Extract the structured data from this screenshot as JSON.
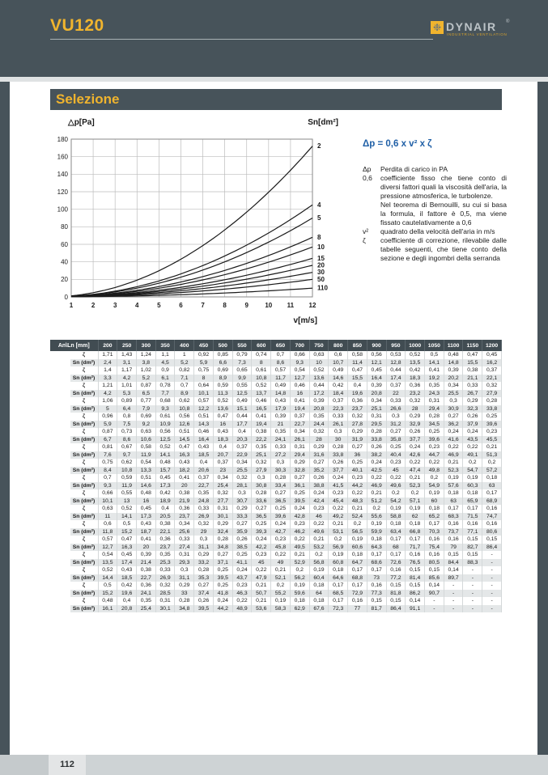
{
  "page": {
    "model": "VU120",
    "page_number": "112",
    "section_title": "Selezione"
  },
  "logo": {
    "brand": "DYNAIR",
    "registered": "®",
    "tagline": "INDUSTRIAL VENTILATION",
    "icon": "fan-icon",
    "accent_color": "#f0b42e"
  },
  "formula": {
    "text": "Δp = 0,6 x v² x ζ",
    "color": "#1f5fa6",
    "definitions": {
      "dp": {
        "term": "Δp",
        "text": "Perdita di carico in PA"
      },
      "c06": {
        "term": "0,6",
        "text": "coefficiente fisso che tiene conto di diversi fattori quali la viscosità dell'aria, la pressione atmosferica, le turbolenze.",
        "text2": "Nel teorema di Bernouilli, su cui si basa la formula, il fattore è 0,5, ma viene fissato cautelativamente a 0,6"
      },
      "v2": {
        "term": "v²",
        "text": "quadrato della velocità dell'aria in m/s"
      },
      "zeta": {
        "term": "ζ",
        "text": "coefficiente di correzione, rilevabile dalle tabelle seguenti, che tiene conto della sezione e degli ingombri della serranda"
      }
    }
  },
  "chart_data": {
    "type": "line",
    "title": "",
    "ylabel": "△p[Pa]",
    "xlabel": "v[m/s]",
    "curve_label_header": "Sn[dm²]",
    "xlim": [
      1,
      12
    ],
    "ylim": [
      0,
      180
    ],
    "x_ticks": [
      1,
      2,
      3,
      4,
      5,
      6,
      7,
      8,
      9,
      10,
      11,
      12
    ],
    "y_ticks": [
      0,
      20,
      40,
      60,
      80,
      100,
      120,
      140,
      160,
      180
    ],
    "grid": true,
    "legend_position": "right-edge-labels",
    "note": "curves follow Δp = 0,6 · v² · ζ; each curve labeled by section Sn[dm²]; dp_at_v12 is the Δp value where the curve meets v = 12 m/s",
    "series": [
      {
        "label": "2",
        "dp_at_v12": 172
      },
      {
        "label": "4",
        "dp_at_v12": 105
      },
      {
        "label": "5",
        "dp_at_v12": 90
      },
      {
        "label": "8",
        "dp_at_v12": 68
      },
      {
        "label": "10",
        "dp_at_v12": 57
      },
      {
        "label": "15",
        "dp_at_v12": 44
      },
      {
        "label": "20",
        "dp_at_v12": 36
      },
      {
        "label": "30",
        "dp_at_v12": 28
      },
      {
        "label": "50",
        "dp_at_v12": 20
      },
      {
        "label": "110",
        "dp_at_v12": 10
      }
    ]
  },
  "table": {
    "corner_label": "An\\Ln [mm]",
    "row_label_zeta": "ζ",
    "row_label_sn": "Sn (dm²)",
    "columns": [
      "200",
      "250",
      "300",
      "350",
      "400",
      "450",
      "500",
      "550",
      "600",
      "650",
      "700",
      "750",
      "800",
      "850",
      "900",
      "950",
      "1000",
      "1050",
      "1100",
      "1150",
      "1200"
    ],
    "rows": [
      {
        "an": "200",
        "zeta": [
          "1,71",
          "1,43",
          "1,24",
          "1,1",
          "1",
          "0,92",
          "0,85",
          "0,79",
          "0,74",
          "0,7",
          "0,66",
          "0,63",
          "0,6",
          "0,58",
          "0,56",
          "0,53",
          "0,52",
          "0,5",
          "0,48",
          "0,47",
          "0,45"
        ],
        "sn": [
          "2,4",
          "3,1",
          "3,8",
          "4,5",
          "5,2",
          "5,9",
          "6,6",
          "7,3",
          "8",
          "8,6",
          "9,3",
          "10",
          "10,7",
          "11,4",
          "12,1",
          "12,8",
          "13,5",
          "14,1",
          "14,8",
          "15,5",
          "16,2"
        ]
      },
      {
        "an": "250",
        "zeta": [
          "1,4",
          "1,17",
          "1,02",
          "0,9",
          "0,82",
          "0,75",
          "0,69",
          "0,65",
          "0,61",
          "0,57",
          "0,54",
          "0,52",
          "0,49",
          "0,47",
          "0,45",
          "0,44",
          "0,42",
          "0,41",
          "0,39",
          "0,38",
          "0,37"
        ],
        "sn": [
          "3,3",
          "4,2",
          "5,2",
          "6,1",
          "7,1",
          "8",
          "8,9",
          "9,9",
          "10,8",
          "11,7",
          "12,7",
          "13,6",
          "14,6",
          "15,5",
          "16,4",
          "17,4",
          "18,3",
          "19,2",
          "20,2",
          "21,1",
          "22,1"
        ]
      },
      {
        "an": "300",
        "zeta": [
          "1,21",
          "1,01",
          "0,87",
          "0,78",
          "0,7",
          "0,64",
          "0,59",
          "0,55",
          "0,52",
          "0,49",
          "0,46",
          "0,44",
          "0,42",
          "0,4",
          "0,39",
          "0,37",
          "0,36",
          "0,35",
          "0,34",
          "0,33",
          "0,32"
        ],
        "sn": [
          "4,2",
          "5,3",
          "6,5",
          "7,7",
          "8,9",
          "10,1",
          "11,3",
          "12,5",
          "13,7",
          "14,8",
          "16",
          "17,2",
          "18,4",
          "19,6",
          "20,8",
          "22",
          "23,2",
          "24,3",
          "25,5",
          "26,7",
          "27,9"
        ]
      },
      {
        "an": "350",
        "zeta": [
          "1,06",
          "0,89",
          "0,77",
          "0,68",
          "0,62",
          "0,57",
          "0,52",
          "0,49",
          "0,46",
          "0,43",
          "0,41",
          "0,39",
          "0,37",
          "0,36",
          "0,34",
          "0,33",
          "0,32",
          "0,31",
          "0,3",
          "0,29",
          "0,28"
        ],
        "sn": [
          "5",
          "6,4",
          "7,9",
          "9,3",
          "10,8",
          "12,2",
          "13,6",
          "15,1",
          "16,5",
          "17,9",
          "19,4",
          "20,8",
          "22,3",
          "23,7",
          "25,1",
          "26,6",
          "28",
          "29,4",
          "30,9",
          "32,3",
          "33,8"
        ]
      },
      {
        "an": "400",
        "zeta": [
          "0,96",
          "0,8",
          "0,69",
          "0,61",
          "0,56",
          "0,51",
          "0,47",
          "0,44",
          "0,41",
          "0,39",
          "0,37",
          "0,35",
          "0,33",
          "0,32",
          "0,31",
          "0,3",
          "0,29",
          "0,28",
          "0,27",
          "0,26",
          "0,25"
        ],
        "sn": [
          "5,9",
          "7,5",
          "9,2",
          "10,9",
          "12,6",
          "14,3",
          "16",
          "17,7",
          "19,4",
          "21",
          "22,7",
          "24,4",
          "26,1",
          "27,8",
          "29,5",
          "31,2",
          "32,9",
          "34,5",
          "36,2",
          "37,9",
          "39,6"
        ]
      },
      {
        "an": "450",
        "zeta": [
          "0,87",
          "0,73",
          "0,63",
          "0,56",
          "0,51",
          "0,46",
          "0,43",
          "0,4",
          "0,38",
          "0,35",
          "0,34",
          "0,32",
          "0,3",
          "0,29",
          "0,28",
          "0,27",
          "0,26",
          "0,25",
          "0,24",
          "0,24",
          "0,23"
        ],
        "sn": [
          "6,7",
          "8,6",
          "10,6",
          "12,5",
          "14,5",
          "16,4",
          "18,3",
          "20,3",
          "22,2",
          "24,1",
          "26,1",
          "28",
          "30",
          "31,9",
          "33,8",
          "35,8",
          "37,7",
          "39,6",
          "41,6",
          "43,5",
          "45,5"
        ]
      },
      {
        "an": "500",
        "zeta": [
          "0,81",
          "0,67",
          "0,58",
          "0,52",
          "0,47",
          "0,43",
          "0,4",
          "0,37",
          "0,35",
          "0,33",
          "0,31",
          "0,29",
          "0,28",
          "0,27",
          "0,26",
          "0,25",
          "0,24",
          "0,23",
          "0,22",
          "0,22",
          "0,21"
        ],
        "sn": [
          "7,6",
          "9,7",
          "11,9",
          "14,1",
          "16,3",
          "18,5",
          "20,7",
          "22,9",
          "25,1",
          "27,2",
          "29,4",
          "31,6",
          "33,8",
          "36",
          "38,2",
          "40,4",
          "42,6",
          "44,7",
          "46,9",
          "49,1",
          "51,3"
        ]
      },
      {
        "an": "550",
        "zeta": [
          "0,75",
          "0,62",
          "0,54",
          "0,48",
          "0,43",
          "0,4",
          "0,37",
          "0,34",
          "0,32",
          "0,3",
          "0,29",
          "0,27",
          "0,26",
          "0,25",
          "0,24",
          "0,23",
          "0,22",
          "0,22",
          "0,21",
          "0,2",
          "0,2"
        ],
        "sn": [
          "8,4",
          "10,8",
          "13,3",
          "15,7",
          "18,2",
          "20,6",
          "23",
          "25,5",
          "27,9",
          "30,3",
          "32,8",
          "35,2",
          "37,7",
          "40,1",
          "42,5",
          "45",
          "47,4",
          "49,8",
          "52,3",
          "54,7",
          "57,2"
        ]
      },
      {
        "an": "600",
        "zeta": [
          "0,7",
          "0,59",
          "0,51",
          "0,45",
          "0,41",
          "0,37",
          "0,34",
          "0,32",
          "0,3",
          "0,28",
          "0,27",
          "0,26",
          "0,24",
          "0,23",
          "0,22",
          "0,22",
          "0,21",
          "0,2",
          "0,19",
          "0,19",
          "0,18"
        ],
        "sn": [
          "9,3",
          "11,9",
          "14,6",
          "17,3",
          "20",
          "22,7",
          "25,4",
          "28,1",
          "30,8",
          "33,4",
          "36,1",
          "38,8",
          "41,5",
          "44,2",
          "46,9",
          "49,6",
          "52,3",
          "54,9",
          "57,6",
          "60,3",
          "63"
        ]
      },
      {
        "an": "650",
        "zeta": [
          "0,66",
          "0,55",
          "0,48",
          "0,42",
          "0,38",
          "0,35",
          "0,32",
          "0,3",
          "0,28",
          "0,27",
          "0,25",
          "0,24",
          "0,23",
          "0,22",
          "0,21",
          "0,2",
          "0,2",
          "0,19",
          "0,18",
          "0,18",
          "0,17"
        ],
        "sn": [
          "10,1",
          "13",
          "16",
          "18,9",
          "21,9",
          "24,8",
          "27,7",
          "30,7",
          "33,6",
          "36,5",
          "39,5",
          "42,4",
          "45,4",
          "48,3",
          "51,2",
          "54,2",
          "57,1",
          "60",
          "63",
          "65,9",
          "68,9"
        ]
      },
      {
        "an": "700",
        "zeta": [
          "0,63",
          "0,52",
          "0,45",
          "0,4",
          "0,36",
          "0,33",
          "0,31",
          "0,29",
          "0,27",
          "0,25",
          "0,24",
          "0,23",
          "0,22",
          "0,21",
          "0,2",
          "0,19",
          "0,19",
          "0,18",
          "0,17",
          "0,17",
          "0,16"
        ],
        "sn": [
          "11",
          "14,1",
          "17,3",
          "20,5",
          "23,7",
          "26,9",
          "30,1",
          "33,3",
          "36,5",
          "39,6",
          "42,8",
          "46",
          "49,2",
          "52,4",
          "55,6",
          "58,8",
          "62",
          "65,2",
          "68,3",
          "71,5",
          "74,7"
        ]
      },
      {
        "an": "750",
        "zeta": [
          "0,6",
          "0,5",
          "0,43",
          "0,38",
          "0,34",
          "0,32",
          "0,29",
          "0,27",
          "0,25",
          "0,24",
          "0,23",
          "0,22",
          "0,21",
          "0,2",
          "0,19",
          "0,18",
          "0,18",
          "0,17",
          "0,16",
          "0,16",
          "0,16"
        ],
        "sn": [
          "11,8",
          "15,2",
          "18,7",
          "22,1",
          "25,6",
          "29",
          "32,4",
          "35,9",
          "39,3",
          "42,7",
          "46,2",
          "49,6",
          "53,1",
          "56,5",
          "59,9",
          "63,4",
          "66,8",
          "70,3",
          "73,7",
          "77,1",
          "80,6"
        ]
      },
      {
        "an": "800",
        "zeta": [
          "0,57",
          "0,47",
          "0,41",
          "0,36",
          "0,33",
          "0,3",
          "0,28",
          "0,26",
          "0,24",
          "0,23",
          "0,22",
          "0,21",
          "0,2",
          "0,19",
          "0,18",
          "0,17",
          "0,17",
          "0,16",
          "0,16",
          "0,15",
          "0,15"
        ],
        "sn": [
          "12,7",
          "16,3",
          "20",
          "23,7",
          "27,4",
          "31,1",
          "34,8",
          "38,5",
          "42,2",
          "45,8",
          "49,5",
          "53,2",
          "56,9",
          "60,6",
          "64,3",
          "68",
          "71,7",
          "75,4",
          "79",
          "82,7",
          "86,4"
        ]
      },
      {
        "an": "850",
        "zeta": [
          "0,54",
          "0,45",
          "0,39",
          "0,35",
          "0,31",
          "0,29",
          "0,27",
          "0,25",
          "0,23",
          "0,22",
          "0,21",
          "0,2",
          "0,19",
          "0,18",
          "0,17",
          "0,17",
          "0,16",
          "0,16",
          "0,15",
          "0,15",
          "-"
        ],
        "sn": [
          "13,5",
          "17,4",
          "21,4",
          "25,3",
          "29,3",
          "33,2",
          "37,1",
          "41,1",
          "45",
          "49",
          "52,9",
          "56,8",
          "60,8",
          "64,7",
          "68,6",
          "72,6",
          "76,5",
          "80,5",
          "84,4",
          "88,3",
          "-"
        ]
      },
      {
        "an": "900",
        "zeta": [
          "0,52",
          "0,43",
          "0,38",
          "0,33",
          "0,3",
          "0,28",
          "0,25",
          "0,24",
          "0,22",
          "0,21",
          "0,2",
          "0,19",
          "0,18",
          "0,17",
          "0,17",
          "0,16",
          "0,15",
          "0,15",
          "0,14",
          "-",
          "-"
        ],
        "sn": [
          "14,4",
          "18,5",
          "22,7",
          "26,9",
          "31,1",
          "35,3",
          "39,5",
          "43,7",
          "47,9",
          "52,1",
          "56,2",
          "60,4",
          "64,6",
          "68,8",
          "73",
          "77,2",
          "81,4",
          "85,6",
          "89,7",
          "-",
          "-"
        ]
      },
      {
        "an": "950",
        "zeta": [
          "0,5",
          "0,42",
          "0,36",
          "0,32",
          "0,29",
          "0,27",
          "0,25",
          "0,23",
          "0,21",
          "0,2",
          "0,19",
          "0,18",
          "0,17",
          "0,17",
          "0,16",
          "0,15",
          "0,15",
          "0,14",
          "-",
          "-",
          "-"
        ],
        "sn": [
          "15,2",
          "19,6",
          "24,1",
          "28,5",
          "33",
          "37,4",
          "41,8",
          "46,3",
          "50,7",
          "55,2",
          "59,6",
          "64",
          "68,5",
          "72,9",
          "77,3",
          "81,8",
          "86,2",
          "90,7",
          "-",
          "-",
          "-"
        ]
      },
      {
        "an": "1000",
        "zeta": [
          "0,48",
          "0,4",
          "0,35",
          "0,31",
          "0,28",
          "0,26",
          "0,24",
          "0,22",
          "0,21",
          "0,19",
          "0,18",
          "0,18",
          "0,17",
          "0,16",
          "0,15",
          "0,15",
          "0,14",
          "-",
          "-",
          "-",
          "-"
        ],
        "sn": [
          "16,1",
          "20,8",
          "25,4",
          "30,1",
          "34,8",
          "39,5",
          "44,2",
          "48,9",
          "53,6",
          "58,3",
          "62,9",
          "67,6",
          "72,3",
          "77",
          "81,7",
          "86,4",
          "91,1",
          "-",
          "-",
          "-",
          "-"
        ]
      }
    ]
  }
}
